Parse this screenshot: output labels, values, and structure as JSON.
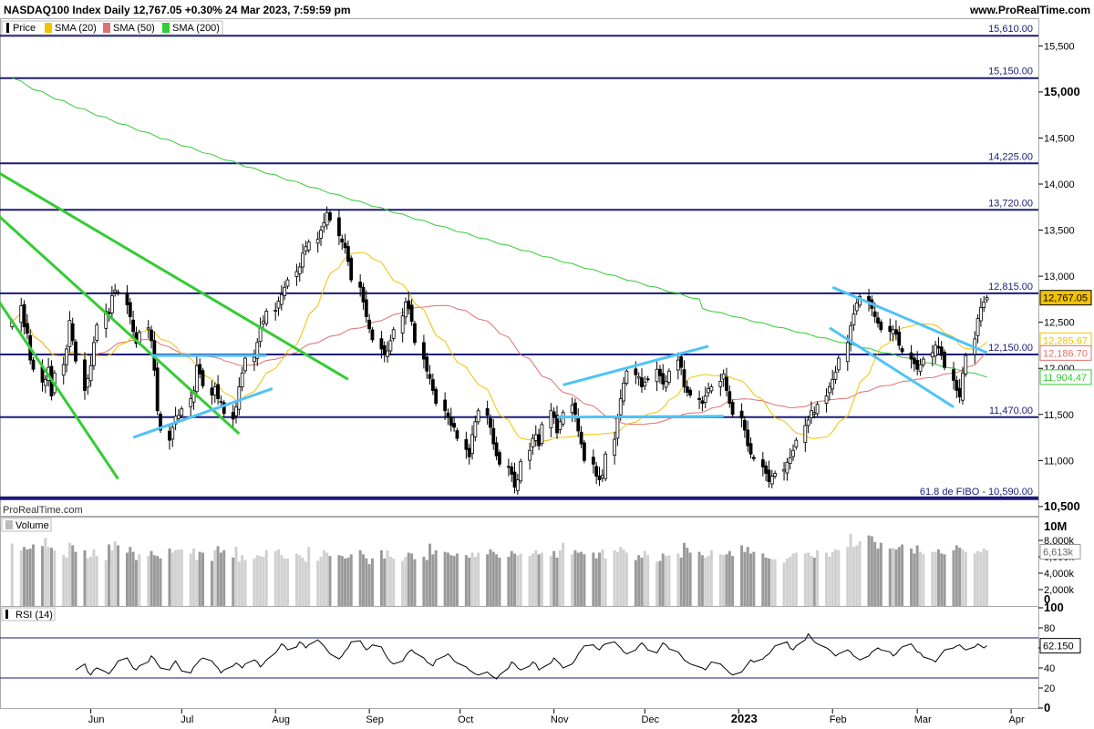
{
  "header": {
    "title": "NASDAQ100 Index Daily 12,767.05 +0.30% 24 Mar 2023, 7:59:59 pm",
    "site": "www.ProRealTime.com",
    "watermark": "ProRealTime.com"
  },
  "legend": [
    {
      "label": "Price",
      "color": "#000000"
    },
    {
      "label": "SMA (20)",
      "color": "#f2c200"
    },
    {
      "label": "SMA (50)",
      "color": "#e07070"
    },
    {
      "label": "SMA (200)",
      "color": "#33cc33"
    }
  ],
  "volume_legend": {
    "label": "Volume",
    "color": "#bbbbbb"
  },
  "rsi_legend": {
    "label": "RSI (14)",
    "color": "#000000"
  },
  "chart_data": [
    {
      "type": "candlestick",
      "panel": "price",
      "ylim": [
        10400,
        15800
      ],
      "y_ticks": [
        "10,500",
        "11,000",
        "11,500",
        "12,000",
        "12,500",
        "13,000",
        "13,500",
        "14,000",
        "14,500",
        "15,000",
        "15,500"
      ],
      "y_ticks_bold": [
        "15,000",
        "10,500"
      ],
      "x_ticks": [
        "Jun",
        "Jul",
        "Aug",
        "Sep",
        "Oct",
        "Nov",
        "Dec",
        "2023",
        "Feb",
        "Mar",
        "Apr"
      ],
      "x_range": [
        "2022-05-02",
        "2023-04-10"
      ],
      "x_tick_dates": [
        "2022-06-01",
        "2022-07-01",
        "2022-08-01",
        "2022-09-01",
        "2022-10-01",
        "2022-11-01",
        "2022-12-01",
        "2023-01-01",
        "2023-02-01",
        "2023-03-01",
        "2023-04-01"
      ],
      "horizontal_levels": [
        {
          "value": 15610,
          "label": "15,610.00"
        },
        {
          "value": 15150,
          "label": "15,150.00"
        },
        {
          "value": 14225,
          "label": "14,225.00"
        },
        {
          "value": 13720,
          "label": "13,720.00"
        },
        {
          "value": 12815,
          "label": "12,815.00"
        },
        {
          "value": 12150,
          "label": "12,150.00"
        },
        {
          "value": 11470,
          "label": "11,470.00"
        },
        {
          "value": 10590,
          "label": "61.8 de FIBO  -  10,590.00",
          "bold": true
        }
      ],
      "last_value_tags": [
        {
          "value": 12767.05,
          "label": "12,767.05",
          "color": "#000000",
          "bg": "#f2c200"
        },
        {
          "value": 12285.67,
          "label": "12,285.67",
          "color": "#f2c200"
        },
        {
          "value": 12186.7,
          "label": "12,186.70",
          "color": "#e07070"
        },
        {
          "value": 11904.47,
          "label": "11,904.47",
          "color": "#33cc33"
        }
      ],
      "closes": [
        12510,
        12680,
        12450,
        12380,
        12090,
        11990,
        11850,
        11880,
        12010,
        11700,
        11950,
        12040,
        12210,
        12520,
        12300,
        12080,
        11760,
        11890,
        12030,
        12280,
        12470,
        12620,
        12590,
        12790,
        12850,
        12820,
        12690,
        12560,
        12400,
        12270,
        12390,
        12440,
        12300,
        11980,
        11540,
        11330,
        11220,
        11360,
        11480,
        11490,
        11560,
        11670,
        11760,
        12030,
        11940,
        11810,
        11710,
        11800,
        11670,
        11640,
        11510,
        11450,
        11580,
        11800,
        11950,
        12110,
        12120,
        12280,
        12450,
        12510,
        12620,
        12630,
        12730,
        12800,
        12880,
        12960,
        13050,
        13100,
        13250,
        13320,
        13370,
        13400,
        13500,
        13580,
        13690,
        13610,
        13440,
        13370,
        13310,
        13160,
        12960,
        12880,
        12720,
        12560,
        12430,
        12310,
        12210,
        12150,
        12190,
        12300,
        12420,
        12570,
        12720,
        12650,
        12510,
        12280,
        12100,
        11970,
        11890,
        11760,
        11620,
        11540,
        11470,
        11380,
        11360,
        11240,
        11120,
        11040,
        11280,
        11420,
        11540,
        11490,
        11360,
        11180,
        11050,
        10960,
        10930,
        10850,
        10710,
        10790,
        10990,
        11110,
        11240,
        11280,
        11160,
        11390,
        11540,
        11480,
        11300,
        11420,
        11520,
        11600,
        11500,
        11320,
        11180,
        11000,
        10960,
        10830,
        10790,
        10840,
        11070,
        11230,
        11460,
        11670,
        11840,
        11970,
        11930,
        11910,
        11800,
        11850,
        11880,
        11990,
        11920,
        11830,
        11860,
        11970,
        12090,
        12010,
        11800,
        11740,
        11710,
        11660,
        11620,
        11700,
        11780,
        11800,
        11860,
        11940,
        11760,
        11620,
        11500,
        11460,
        11330,
        11160,
        11070,
        11020,
        10930,
        10860,
        10770,
        10830,
        10860,
        10900,
        10980,
        11030,
        11110,
        11220,
        11380,
        11440,
        11540,
        11520,
        11610,
        11700,
        11800,
        11880,
        11960,
        12110,
        12280,
        12460,
        12590,
        12710,
        12780,
        12720,
        12650,
        12560,
        12490,
        12420,
        12400,
        12420,
        12370,
        12250,
        12180,
        12100,
        12050,
        11990,
        12040,
        12100,
        12170,
        12250,
        12220,
        12140,
        12010,
        11870,
        11760,
        11690,
        11950,
        12140,
        12320,
        12540,
        12660,
        12720,
        12767.05
      ],
      "sma20_end": 12285.67,
      "sma50_end": 12186.7,
      "sma200_end": 11904.47,
      "trendlines": [
        {
          "from": [
            "2022-04-25",
            14250
          ],
          "to": [
            "2022-08-25",
            11880
          ],
          "color": "#33cc33"
        },
        {
          "from": [
            "2022-04-25",
            13850
          ],
          "to": [
            "2022-07-20",
            11290
          ],
          "color": "#33cc33"
        },
        {
          "from": [
            "2022-04-25",
            13050
          ],
          "to": [
            "2022-06-10",
            10800
          ],
          "color": "#33cc33"
        },
        {
          "from": [
            "2022-06-21",
            12140
          ],
          "to": [
            "2022-07-29",
            12140
          ],
          "color": "#4fc3f7"
        },
        {
          "from": [
            "2022-06-15",
            11250
          ],
          "to": [
            "2022-07-31",
            11780
          ],
          "color": "#4fc3f7"
        },
        {
          "from": [
            "2022-11-04",
            11820
          ],
          "to": [
            "2022-12-22",
            12240
          ],
          "color": "#4fc3f7"
        },
        {
          "from": [
            "2022-11-02",
            11470
          ],
          "to": [
            "2022-12-27",
            11480
          ],
          "color": "#4fc3f7"
        },
        {
          "from": [
            "2023-02-01",
            12880
          ],
          "to": [
            "2023-03-24",
            12170
          ],
          "color": "#4fc3f7"
        },
        {
          "from": [
            "2023-01-31",
            12440
          ],
          "to": [
            "2023-03-13",
            11580
          ],
          "color": "#4fc3f7"
        }
      ]
    },
    {
      "type": "bar",
      "panel": "volume",
      "ylim": [
        0,
        10000
      ],
      "y_ticks": [
        "2,000k",
        "4,000k",
        "6,000k",
        "8,000k"
      ],
      "y_top_label": "10M",
      "y_zero_label": "0",
      "last_value_tag": "6,613k",
      "values_k": [
        7600,
        6800,
        7200,
        6900,
        7000,
        7500,
        7300,
        8300,
        7200,
        7100,
        6800,
        6200,
        5900,
        7700,
        7400,
        6600,
        6800,
        5800,
        6000,
        6900,
        6100,
        5600,
        7500,
        6800,
        7900,
        7400,
        6500,
        7200,
        6600,
        5600,
        6300,
        6100,
        6700,
        6200,
        6100,
        5800,
        7000,
        6500,
        6800,
        6900,
        6900,
        6400,
        7000,
        5600,
        6600,
        6500,
        5500,
        6800,
        7300,
        6500,
        6800,
        5900,
        7200,
        5400,
        6200,
        5600,
        5800,
        6200,
        6100,
        6000,
        6800,
        6700,
        6900,
        6200,
        5800,
        5800,
        6400,
        6200,
        5900,
        5400,
        7200,
        5500,
        6000,
        6800,
        6500,
        6100,
        6200,
        6100,
        5800,
        5900,
        6300,
        6800,
        6300,
        5800,
        5100,
        5800,
        6800,
        5800,
        6800,
        6000,
        5800,
        5500,
        6000,
        6500,
        6400,
        5700,
        6000,
        5600,
        7600,
        6300,
        6800,
        6600,
        6500,
        6200,
        6100,
        6400,
        6200,
        5900,
        6500,
        6000,
        6500,
        6300,
        6900,
        6600,
        6300,
        5900,
        6000,
        6700,
        6400,
        6200,
        6400,
        6100,
        6400,
        6800,
        6300,
        6500,
        6100,
        6700,
        5900,
        6800,
        7700,
        6300,
        6800,
        6500,
        6600,
        6300,
        6500,
        5800,
        6500,
        6900,
        5800,
        6800,
        6600,
        7200,
        6900,
        6500,
        5600,
        6200,
        5900,
        6700,
        6200,
        5400,
        5500,
        6400,
        6100,
        6200,
        6400,
        5900,
        7700,
        7100,
        6500,
        6600,
        6200,
        5900,
        6100,
        6800,
        6300,
        6200,
        6300,
        6700,
        6100,
        7400,
        6600,
        7200,
        6400,
        6600,
        6400,
        5900,
        5800,
        5700,
        5700,
        5300,
        5800,
        6000,
        6400,
        6500,
        6400,
        6500,
        6100,
        5900,
        6800,
        6500,
        6000,
        6600,
        6900,
        6800,
        7200,
        8800,
        7200,
        7400,
        7900,
        8600,
        8500,
        7800,
        7000,
        7700,
        7000,
        7100,
        6900,
        7200,
        7500,
        7000,
        6400,
        7400,
        6600,
        6300,
        6600,
        6600,
        6900,
        6400,
        6300,
        6800,
        7400,
        7100,
        6900,
        6600,
        6400,
        6700,
        6600,
        7000,
        6800,
        7500,
        7100,
        6613
      ]
    },
    {
      "type": "line",
      "panel": "rsi",
      "ylim": [
        0,
        100
      ],
      "y_ticks": [
        "0",
        "20",
        "40",
        "60",
        "80",
        "100"
      ],
      "y_ticks_bold": [
        "0",
        "100"
      ],
      "levels": [
        70,
        30
      ],
      "last_value_tag": "62.150",
      "values": [
        38,
        44,
        36,
        33,
        38,
        40,
        36,
        34,
        38,
        42,
        47,
        50,
        45,
        40,
        38,
        42,
        46,
        52,
        49,
        44,
        40,
        38,
        43,
        47,
        42,
        37,
        35,
        41,
        44,
        48,
        50,
        47,
        43,
        40,
        35,
        38,
        42,
        45,
        43,
        40,
        44,
        48,
        46,
        41,
        44,
        48,
        55,
        59,
        64,
        62,
        58,
        61,
        66,
        64,
        60,
        63,
        68,
        65,
        62,
        58,
        54,
        49,
        52,
        57,
        60,
        66,
        67,
        62,
        58,
        60,
        63,
        61,
        55,
        50,
        46,
        44,
        47,
        52,
        56,
        58,
        55,
        50,
        46,
        44,
        42,
        48,
        52,
        54,
        51,
        47,
        45,
        41,
        38,
        36,
        34,
        33,
        36,
        33,
        31,
        29,
        33,
        40,
        46,
        44,
        40,
        38,
        42,
        46,
        44,
        38,
        40,
        45,
        50,
        47,
        44,
        40,
        44,
        48,
        54,
        58,
        62,
        63,
        60,
        58,
        62,
        64,
        66,
        63,
        60,
        56,
        54,
        58,
        62,
        65,
        62,
        58,
        55,
        60,
        65,
        63,
        59,
        56,
        52,
        48,
        46,
        44,
        41,
        40,
        38,
        42,
        46,
        44,
        41,
        38,
        35,
        33,
        36,
        40,
        44,
        48,
        46,
        49,
        52,
        54,
        58,
        62,
        65,
        66,
        60,
        58,
        62,
        68,
        74,
        70,
        66,
        64,
        60,
        58,
        55,
        52,
        54,
        58,
        56,
        52,
        50,
        48,
        52,
        56,
        58,
        60,
        58,
        56,
        52,
        54,
        58,
        61,
        64,
        60,
        56,
        55,
        51,
        48,
        46,
        50,
        54,
        58,
        60,
        62,
        63,
        60,
        58,
        61,
        64,
        62,
        60,
        62.15
      ]
    }
  ]
}
